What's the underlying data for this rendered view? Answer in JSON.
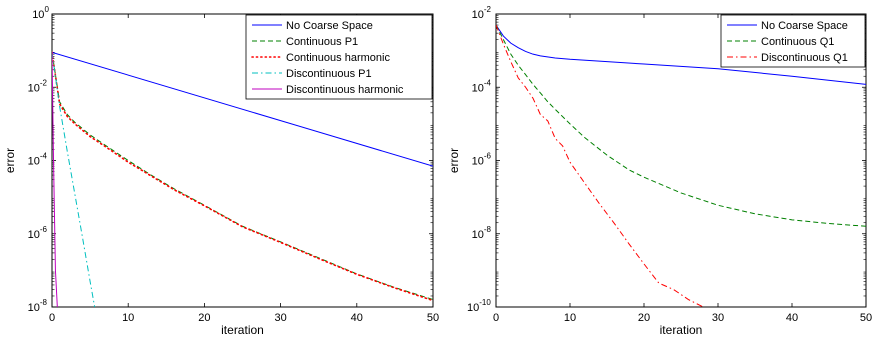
{
  "chart_data": [
    {
      "type": "line",
      "yscale": "log",
      "xlabel": "iteration",
      "ylabel": "error",
      "xlim": [
        0,
        50
      ],
      "ylim": [
        1e-08,
        1
      ],
      "xticks": [
        0,
        10,
        20,
        30,
        40,
        50
      ],
      "yticks": [
        {
          "value": 1,
          "mantissa": "10",
          "exponent": "0"
        },
        {
          "value": 0.01,
          "mantissa": "10",
          "exponent": "-2"
        },
        {
          "value": 0.0001,
          "mantissa": "10",
          "exponent": "-4"
        },
        {
          "value": 1e-06,
          "mantissa": "10",
          "exponent": "-6"
        },
        {
          "value": 1e-08,
          "mantissa": "10",
          "exponent": "-8"
        }
      ],
      "grid": false,
      "legend_position": "top-right",
      "series": [
        {
          "name": "No Coarse Space",
          "color": "#0000ff",
          "style": "solid",
          "x": [
            0,
            50
          ],
          "y": [
            0.09,
            7e-05
          ]
        },
        {
          "name": "Continuous P1",
          "color": "#008000",
          "style": "dashed",
          "x": [
            0,
            1,
            2,
            3,
            5,
            7,
            10,
            13,
            16,
            20,
            25,
            30,
            35,
            40,
            45,
            50
          ],
          "y": [
            0.09,
            0.004,
            0.0018,
            0.0011,
            0.0005,
            0.00026,
            0.0001,
            4e-05,
            1.7e-05,
            6e-06,
            1.6e-06,
            6e-07,
            2.2e-07,
            8e-08,
            3.4e-08,
            1.6e-08
          ]
        },
        {
          "name": "Continuous harmonic",
          "color": "#ff0000",
          "style": "dotted",
          "x": [
            0,
            1,
            2,
            3,
            5,
            7,
            10,
            13,
            16,
            20,
            25,
            30,
            35,
            40,
            45,
            50
          ],
          "y": [
            0.09,
            0.0035,
            0.0016,
            0.001,
            0.00045,
            0.00024,
            9e-05,
            3.8e-05,
            1.6e-05,
            5.8e-06,
            1.55e-06,
            5.8e-07,
            2.1e-07,
            7.8e-08,
            3.3e-08,
            1.5e-08
          ]
        },
        {
          "name": "Discontinuous P1",
          "color": "#00bfbf",
          "style": "dashdot",
          "x": [
            0,
            1,
            2,
            3,
            4,
            5,
            5.6
          ],
          "y": [
            0.09,
            0.003,
            0.00018,
            1.2e-05,
            8e-07,
            5e-08,
            1e-08
          ]
        },
        {
          "name": "Discontinuous harmonic",
          "color": "#bf00bf",
          "style": "solid",
          "x": [
            0,
            0.2,
            0.45,
            0.7
          ],
          "y": [
            0.09,
            0.0001,
            1e-07,
            1e-08
          ]
        }
      ]
    },
    {
      "type": "line",
      "yscale": "log",
      "xlabel": "iteration",
      "ylabel": "error",
      "xlim": [
        0,
        50
      ],
      "ylim": [
        1e-10,
        0.01
      ],
      "xticks": [
        0,
        10,
        20,
        30,
        40,
        50
      ],
      "yticks": [
        {
          "value": 0.01,
          "mantissa": "10",
          "exponent": "-2"
        },
        {
          "value": 0.0001,
          "mantissa": "10",
          "exponent": "-4"
        },
        {
          "value": 1e-06,
          "mantissa": "10",
          "exponent": "-6"
        },
        {
          "value": 1e-08,
          "mantissa": "10",
          "exponent": "-8"
        },
        {
          "value": 1e-10,
          "mantissa": "10",
          "exponent": "-10"
        }
      ],
      "grid": false,
      "legend_position": "top-right",
      "series": [
        {
          "name": "No Coarse Space",
          "color": "#0000ff",
          "style": "solid",
          "x": [
            0,
            1,
            2,
            3,
            4,
            5,
            6,
            8,
            10,
            15,
            20,
            30,
            40,
            50
          ],
          "y": [
            0.005,
            0.0025,
            0.0016,
            0.0012,
            0.00095,
            0.0008,
            0.00072,
            0.00063,
            0.00058,
            0.0005,
            0.00043,
            0.00032,
            0.0002,
            0.00012
          ]
        },
        {
          "name": "Continuous Q1",
          "color": "#008000",
          "style": "dashed",
          "x": [
            0,
            1,
            2,
            3,
            4,
            5,
            6,
            7,
            8,
            10,
            12,
            15,
            18,
            20,
            25,
            30,
            35,
            40,
            45,
            50
          ],
          "y": [
            0.005,
            0.002,
            0.0008,
            0.0004,
            0.00022,
            0.00012,
            7e-05,
            4e-05,
            2.5e-05,
            1e-05,
            4.2e-06,
            1.4e-06,
            5.5e-07,
            3.5e-07,
            1.3e-07,
            6e-08,
            3.5e-08,
            2.4e-08,
            1.9e-08,
            1.6e-08
          ]
        },
        {
          "name": "Discontinuous Q1",
          "color": "#ff0000",
          "style": "dashdot",
          "x": [
            0,
            1,
            2,
            3,
            4,
            5,
            6,
            7,
            8,
            9,
            10,
            12,
            14,
            16,
            18,
            20,
            22,
            24,
            26,
            28
          ],
          "y": [
            0.005,
            0.0015,
            0.0005,
            0.00018,
            0.0001,
            5e-05,
            1.8e-05,
            1.2e-05,
            4e-06,
            2.5e-06,
            9e-07,
            2.4e-07,
            6.5e-08,
            1.9e-08,
            5.2e-09,
            1.5e-09,
            4.5e-10,
            3e-10,
            1.6e-10,
            1e-10
          ]
        }
      ]
    }
  ]
}
